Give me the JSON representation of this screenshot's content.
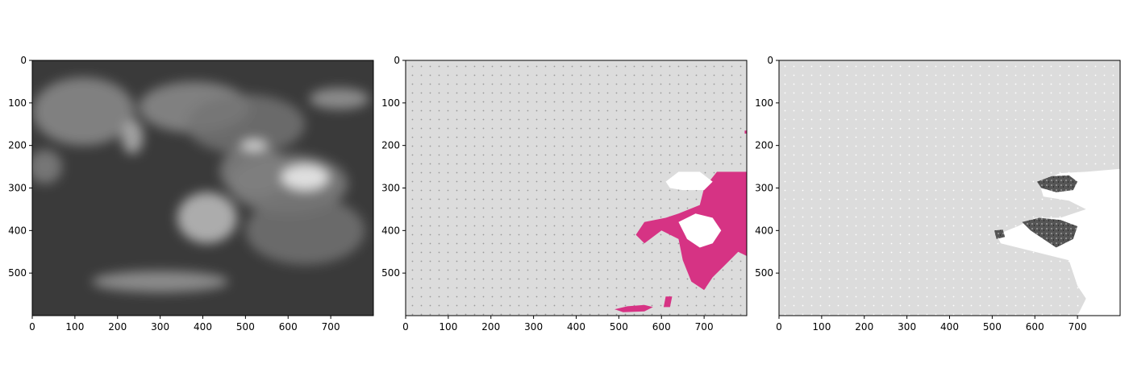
{
  "chart_data": [
    {
      "type": "heatmap",
      "panel": "satellite-image",
      "xlim": [
        0,
        800
      ],
      "ylim": [
        600,
        0
      ],
      "xticks": [
        0,
        100,
        200,
        300,
        400,
        500,
        600,
        700
      ],
      "yticks": [
        0,
        100,
        200,
        300,
        400,
        500
      ],
      "colormap": "gray",
      "background_color": "#3a3a3a",
      "features": [
        {
          "kind": "cloud",
          "cx": 120,
          "cy": 120,
          "rx": 120,
          "ry": 80,
          "value": 0.55
        },
        {
          "kind": "cloud",
          "cx": 235,
          "cy": 180,
          "rx": 25,
          "ry": 40,
          "value": 0.7
        },
        {
          "kind": "cloud",
          "cx": 30,
          "cy": 250,
          "rx": 40,
          "ry": 40,
          "value": 0.5
        },
        {
          "kind": "cloud",
          "cx": 380,
          "cy": 110,
          "rx": 130,
          "ry": 60,
          "value": 0.55
        },
        {
          "kind": "cloud",
          "cx": 500,
          "cy": 150,
          "rx": 140,
          "ry": 70,
          "value": 0.45
        },
        {
          "kind": "cloud",
          "cx": 720,
          "cy": 90,
          "rx": 70,
          "ry": 25,
          "value": 0.6
        },
        {
          "kind": "cloud",
          "cx": 520,
          "cy": 260,
          "rx": 80,
          "ry": 60,
          "value": 0.5
        },
        {
          "kind": "cloud",
          "cx": 600,
          "cy": 290,
          "rx": 140,
          "ry": 70,
          "value": 0.5
        },
        {
          "kind": "cloud",
          "cx": 640,
          "cy": 275,
          "rx": 55,
          "ry": 30,
          "value": 0.95
        },
        {
          "kind": "cloud",
          "cx": 410,
          "cy": 370,
          "rx": 70,
          "ry": 60,
          "value": 0.75
        },
        {
          "kind": "cloud",
          "cx": 640,
          "cy": 400,
          "rx": 140,
          "ry": 80,
          "value": 0.45
        },
        {
          "kind": "cloud",
          "cx": 300,
          "cy": 520,
          "rx": 160,
          "ry": 25,
          "value": 0.6
        },
        {
          "kind": "cloud",
          "cx": 520,
          "cy": 200,
          "rx": 30,
          "ry": 12,
          "value": 0.9
        }
      ]
    },
    {
      "type": "heatmap",
      "panel": "classification-mask",
      "xlim": [
        0,
        800
      ],
      "ylim": [
        600,
        0
      ],
      "xticks": [
        0,
        100,
        200,
        300,
        400,
        500,
        600,
        700
      ],
      "yticks": [
        0,
        100,
        200,
        300,
        400,
        500
      ],
      "background_color": "#dcdcdc",
      "dot_color": "#999999",
      "class_colors": {
        "highlight": "#d63384",
        "bright": "#ffffff"
      },
      "regions": [
        {
          "class": "highlight",
          "points": [
            [
              800,
              262
            ],
            [
              730,
              262
            ],
            [
              700,
              300
            ],
            [
              690,
              340
            ],
            [
              640,
              360
            ],
            [
              610,
              370
            ],
            [
              560,
              380
            ],
            [
              540,
              410
            ],
            [
              560,
              430
            ],
            [
              600,
              400
            ],
            [
              640,
              420
            ],
            [
              650,
              470
            ],
            [
              670,
              520
            ],
            [
              700,
              540
            ],
            [
              720,
              510
            ],
            [
              750,
              480
            ],
            [
              780,
              450
            ],
            [
              800,
              460
            ]
          ]
        },
        {
          "class": "bright",
          "points": [
            [
              610,
              285
            ],
            [
              640,
              262
            ],
            [
              690,
              262
            ],
            [
              720,
              285
            ],
            [
              700,
              305
            ],
            [
              650,
              305
            ],
            [
              620,
              300
            ]
          ]
        },
        {
          "class": "bright",
          "points": [
            [
              640,
              380
            ],
            [
              680,
              360
            ],
            [
              720,
              370
            ],
            [
              740,
              400
            ],
            [
              720,
              430
            ],
            [
              690,
              440
            ],
            [
              660,
              420
            ]
          ]
        },
        {
          "class": "highlight",
          "points": [
            [
              490,
              585
            ],
            [
              520,
              578
            ],
            [
              560,
              575
            ],
            [
              580,
              580
            ],
            [
              560,
              590
            ],
            [
              510,
              592
            ]
          ]
        },
        {
          "class": "highlight",
          "points": [
            [
              610,
              555
            ],
            [
              625,
              555
            ],
            [
              620,
              580
            ],
            [
              605,
              580
            ]
          ]
        },
        {
          "class": "highlight",
          "points": [
            [
              795,
              165
            ],
            [
              800,
              165
            ],
            [
              800,
              172
            ],
            [
              795,
              172
            ]
          ]
        }
      ]
    },
    {
      "type": "heatmap",
      "panel": "error-mask",
      "xlim": [
        0,
        800
      ],
      "ylim": [
        600,
        0
      ],
      "xticks": [
        0,
        100,
        200,
        300,
        400,
        500,
        600,
        700
      ],
      "yticks": [
        0,
        100,
        200,
        300,
        400,
        500
      ],
      "background_color": "#dcdcdc",
      "dot_color": "#ffffff",
      "class_colors": {
        "region": "#ffffff",
        "mixed": "#555555"
      },
      "regions": [
        {
          "class": "region",
          "points": [
            [
              800,
              255
            ],
            [
              720,
              262
            ],
            [
              660,
              265
            ],
            [
              610,
              285
            ],
            [
              620,
              320
            ],
            [
              680,
              330
            ],
            [
              720,
              350
            ],
            [
              660,
              370
            ],
            [
              600,
              370
            ],
            [
              560,
              390
            ],
            [
              510,
              410
            ],
            [
              520,
              430
            ],
            [
              560,
              440
            ],
            [
              600,
              450
            ],
            [
              640,
              460
            ],
            [
              680,
              470
            ],
            [
              700,
              530
            ],
            [
              720,
              560
            ],
            [
              700,
              600
            ],
            [
              800,
              600
            ]
          ]
        },
        {
          "class": "mixed",
          "points": [
            [
              605,
              285
            ],
            [
              640,
              272
            ],
            [
              680,
              270
            ],
            [
              700,
              285
            ],
            [
              690,
              305
            ],
            [
              650,
              310
            ],
            [
              615,
              300
            ]
          ]
        },
        {
          "class": "mixed",
          "points": [
            [
              570,
              380
            ],
            [
              610,
              370
            ],
            [
              660,
              375
            ],
            [
              700,
              390
            ],
            [
              690,
              420
            ],
            [
              650,
              440
            ],
            [
              620,
              420
            ],
            [
              590,
              400
            ]
          ]
        },
        {
          "class": "mixed",
          "points": [
            [
              505,
              400
            ],
            [
              525,
              398
            ],
            [
              530,
              415
            ],
            [
              510,
              420
            ]
          ]
        }
      ]
    }
  ]
}
